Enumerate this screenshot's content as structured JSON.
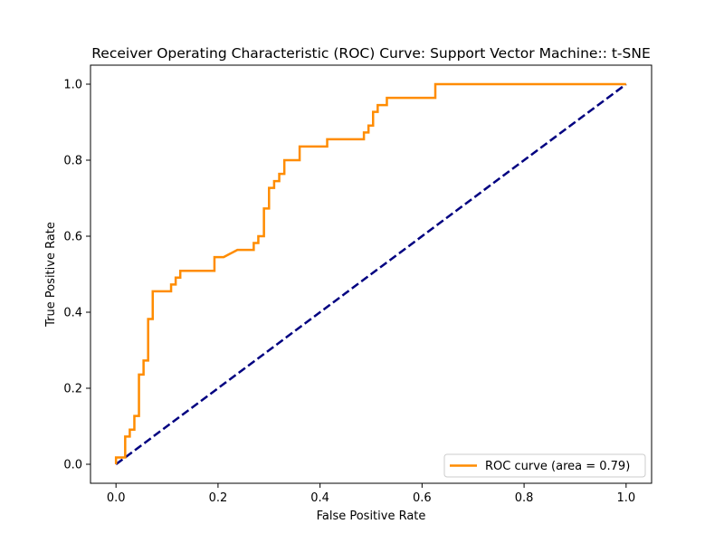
{
  "chart_data": {
    "type": "line",
    "title": "Receiver Operating Characteristic (ROC) Curve: Support Vector Machine:: t-SNE",
    "xlabel": "False Positive Rate",
    "ylabel": "True Positive Rate",
    "xlim": [
      -0.05,
      1.05
    ],
    "ylim": [
      -0.05,
      1.05
    ],
    "xticks": [
      0.0,
      0.2,
      0.4,
      0.6,
      0.8,
      1.0
    ],
    "yticks": [
      0.0,
      0.2,
      0.4,
      0.6,
      0.8,
      1.0
    ],
    "xtick_labels": [
      "0.0",
      "0.2",
      "0.4",
      "0.6",
      "0.8",
      "1.0"
    ],
    "ytick_labels": [
      "0.0",
      "0.2",
      "0.4",
      "0.6",
      "0.8",
      "1.0"
    ],
    "grid": false,
    "legend_position": "lower-right",
    "series": [
      {
        "name": "ROC curve (area = 0.79)",
        "color": "#ff8c00",
        "style": "solid",
        "x": [
          0.0,
          0.0,
          0.018,
          0.018,
          0.027,
          0.027,
          0.036,
          0.036,
          0.045,
          0.045,
          0.054,
          0.054,
          0.063,
          0.063,
          0.072,
          0.072,
          0.081,
          0.081,
          0.108,
          0.108,
          0.117,
          0.117,
          0.126,
          0.126,
          0.193,
          0.193,
          0.211,
          0.238,
          0.27,
          0.27,
          0.279,
          0.279,
          0.29,
          0.29,
          0.3,
          0.3,
          0.31,
          0.31,
          0.32,
          0.32,
          0.33,
          0.33,
          0.36,
          0.36,
          0.414,
          0.414,
          0.486,
          0.486,
          0.495,
          0.495,
          0.504,
          0.504,
          0.513,
          0.513,
          0.531,
          0.531,
          0.626,
          0.626,
          1.0
        ],
        "y": [
          0.0,
          0.018,
          0.018,
          0.073,
          0.073,
          0.091,
          0.091,
          0.127,
          0.127,
          0.236,
          0.236,
          0.273,
          0.273,
          0.382,
          0.382,
          0.455,
          0.455,
          0.455,
          0.455,
          0.473,
          0.473,
          0.491,
          0.491,
          0.509,
          0.509,
          0.545,
          0.545,
          0.564,
          0.564,
          0.582,
          0.582,
          0.6,
          0.6,
          0.673,
          0.673,
          0.727,
          0.727,
          0.745,
          0.745,
          0.764,
          0.764,
          0.8,
          0.8,
          0.836,
          0.836,
          0.855,
          0.855,
          0.873,
          0.873,
          0.891,
          0.891,
          0.927,
          0.927,
          0.945,
          0.945,
          0.964,
          0.964,
          1.0,
          1.0
        ]
      },
      {
        "name": "",
        "color": "#000080",
        "style": "dashed",
        "x": [
          0.0,
          1.0
        ],
        "y": [
          0.0,
          1.0
        ]
      }
    ]
  }
}
